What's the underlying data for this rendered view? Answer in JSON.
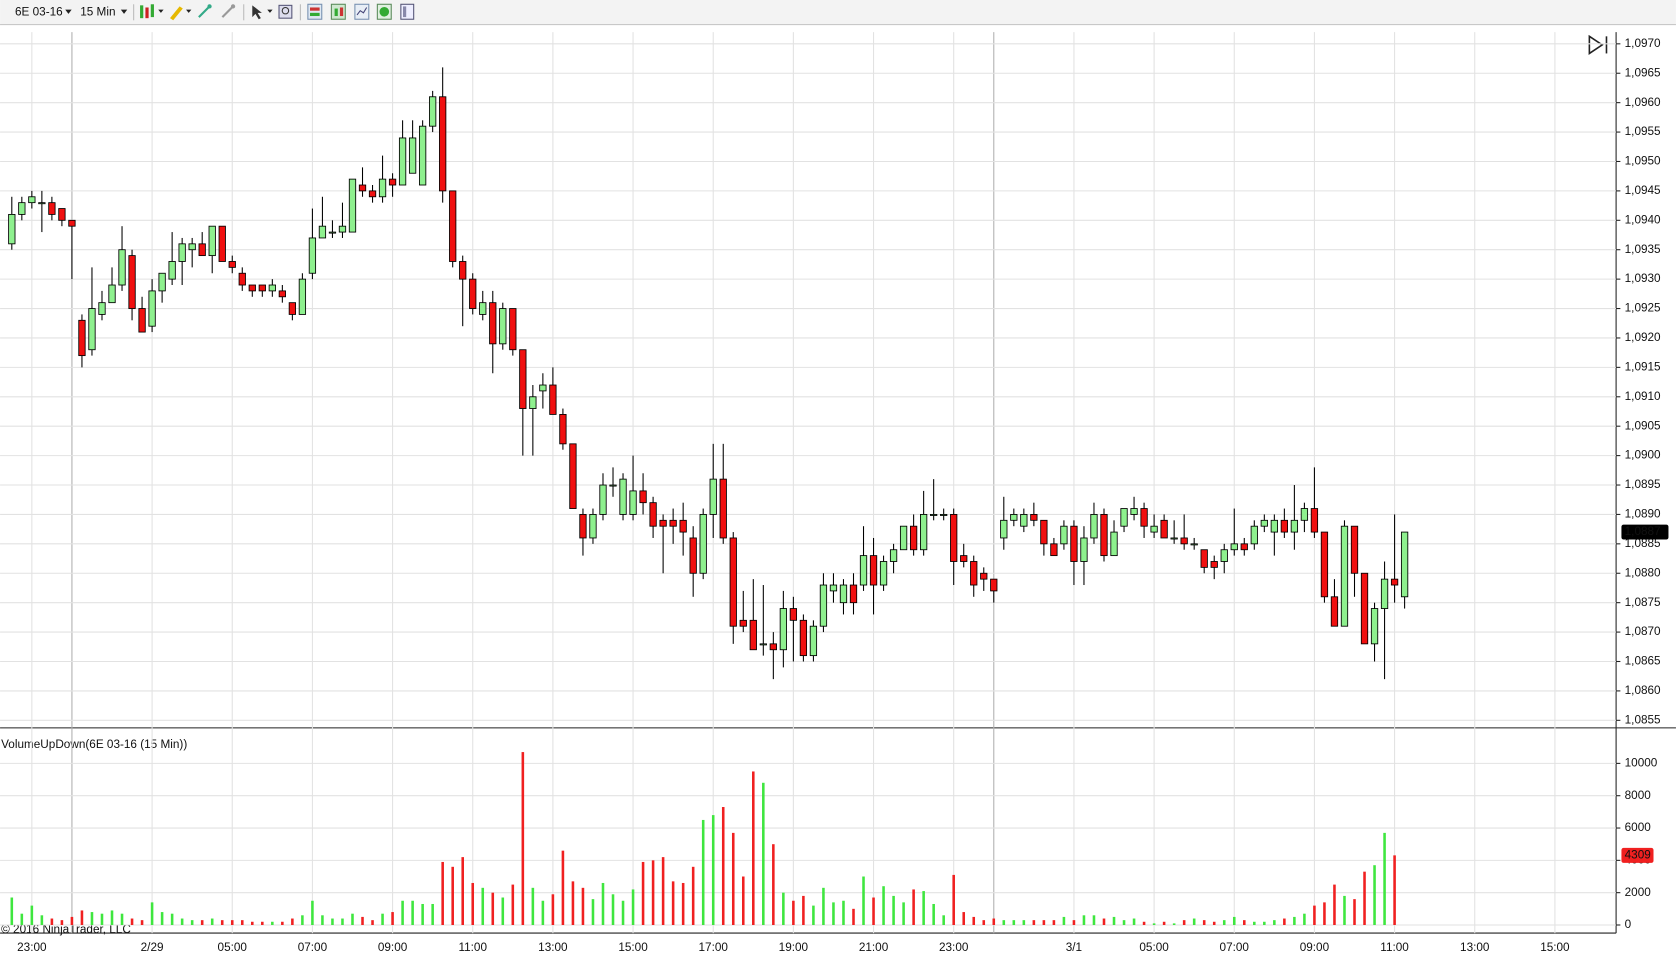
{
  "toolbar": {
    "instrument": "6E 03-16",
    "interval": "15 Min"
  },
  "copyright": "© 2016 NinjaTrader, LLC",
  "chart_data": [
    {
      "type": "candlestick",
      "categories": [
        null,
        null,
        "23:00",
        null,
        null,
        null,
        null,
        null,
        null,
        null,
        null,
        null,
        null,
        null,
        "2/29",
        null,
        null,
        null,
        null,
        null,
        null,
        null,
        "05:00",
        null,
        null,
        null,
        null,
        null,
        null,
        null,
        "07:00",
        null,
        null,
        null,
        null,
        null,
        null,
        null,
        "09:00",
        null,
        null,
        null,
        null,
        null,
        null,
        null,
        "11:00",
        null,
        null,
        null,
        null,
        null,
        null,
        null,
        "13:00",
        null,
        null,
        null,
        null,
        null,
        null,
        null,
        "15:00",
        null,
        null,
        null,
        null,
        null,
        null,
        null,
        "17:00",
        null,
        null,
        null,
        null,
        null,
        null,
        null,
        "19:00",
        null,
        null,
        null,
        null,
        null,
        null,
        null,
        "21:00",
        null,
        null,
        null,
        null,
        null,
        null,
        null,
        "23:00",
        null,
        null,
        null,
        null,
        null,
        null,
        null,
        null,
        null,
        null,
        null,
        "3/1",
        null,
        null,
        null,
        null,
        null,
        null,
        null,
        "05:00",
        null,
        null,
        null,
        null,
        null,
        null,
        null,
        "07:00",
        null,
        null,
        null,
        null,
        null,
        null,
        null,
        "09:00",
        null,
        null,
        null,
        null,
        null,
        null,
        null,
        "11:00",
        null,
        null,
        null,
        null,
        null,
        null,
        null,
        "13:00",
        null,
        null,
        null,
        null,
        null,
        null,
        null,
        "15:00",
        null,
        null,
        null,
        null,
        null
      ],
      "open": [
        1.0936,
        1.0941,
        1.0943,
        1.0943,
        1.0943,
        1.0942,
        1.094,
        1.0923,
        1.0918,
        1.0924,
        1.0926,
        1.0929,
        1.0934,
        1.0925,
        1.0922,
        1.0928,
        1.093,
        1.0933,
        1.0935,
        1.0936,
        1.0934,
        1.0939,
        1.0933,
        1.0931,
        1.0929,
        1.0929,
        1.0928,
        1.0928,
        1.0926,
        1.0924,
        1.0931,
        1.0937,
        1.0938,
        1.0938,
        1.0938,
        1.0946,
        1.0945,
        1.0944,
        1.0947,
        1.0946,
        1.0948,
        1.0946,
        1.0956,
        1.0961,
        1.0945,
        1.0933,
        1.093,
        1.0924,
        1.0926,
        1.0919,
        1.0925,
        1.0918,
        1.0908,
        1.0911,
        1.0912,
        1.0907,
        1.0902,
        1.089,
        1.0886,
        1.089,
        1.0895,
        1.089,
        1.089,
        1.0894,
        1.0892,
        1.0889,
        1.0889,
        1.0889,
        1.0886,
        1.088,
        1.089,
        1.0896,
        1.0886,
        1.0872,
        1.0872,
        1.0868,
        1.0868,
        1.0867,
        1.0874,
        1.0872,
        1.0866,
        1.0871,
        1.0877,
        1.0875,
        1.0878,
        1.0878,
        1.0883,
        1.0878,
        1.0882,
        1.0884,
        1.0888,
        1.0884,
        1.089,
        1.089,
        1.089,
        1.0883,
        1.0882,
        1.088,
        1.0879,
        1.0886,
        1.0889,
        1.0888,
        1.089,
        1.0889,
        1.0885,
        1.0885,
        1.0888,
        1.0882,
        1.0886,
        1.089,
        1.0883,
        1.0888,
        1.089,
        1.0891,
        1.0887,
        1.0889,
        1.0886,
        1.0886,
        1.0885,
        1.0884,
        1.0882,
        1.0882,
        1.0884,
        1.0885,
        1.0885,
        1.0888,
        1.0887,
        1.0889,
        1.0887,
        1.0889,
        1.0891,
        1.0887,
        1.0876,
        1.0871,
        1.0888,
        1.088,
        1.0868,
        1.0874,
        1.0879,
        1.0876,
        null,
        null,
        null,
        null,
        null,
        null,
        null,
        null,
        null,
        null,
        null,
        null,
        null,
        null,
        null,
        null,
        null,
        null,
        null,
        null
      ],
      "high": [
        1.0944,
        1.0944,
        1.0945,
        1.0945,
        1.0944,
        1.0942,
        1.094,
        1.0924,
        1.0932,
        1.0928,
        1.0932,
        1.0939,
        1.0935,
        1.0927,
        1.093,
        1.0931,
        1.0938,
        1.0937,
        1.0937,
        1.0938,
        1.0939,
        1.0939,
        1.0934,
        1.0932,
        1.0929,
        1.0929,
        1.093,
        1.0929,
        1.0926,
        1.0931,
        1.0942,
        1.0944,
        1.094,
        1.0943,
        1.0947,
        1.0949,
        1.0946,
        1.0951,
        1.0948,
        1.0957,
        1.0957,
        1.0957,
        1.0962,
        1.0966,
        1.0945,
        1.0934,
        1.0931,
        1.0928,
        1.0928,
        1.0926,
        1.0925,
        1.0918,
        1.0912,
        1.0914,
        1.0915,
        1.0908,
        1.0902,
        1.0891,
        1.0891,
        1.0897,
        1.0898,
        1.0897,
        1.09,
        1.0897,
        1.0893,
        1.089,
        1.0891,
        1.0892,
        1.0888,
        1.0891,
        1.0902,
        1.0902,
        1.0887,
        1.0877,
        1.0879,
        1.0878,
        1.087,
        1.0877,
        1.0876,
        1.0873,
        1.0872,
        1.088,
        1.088,
        1.0879,
        1.088,
        1.0888,
        1.0886,
        1.0883,
        1.0885,
        1.0888,
        1.089,
        1.0894,
        1.0896,
        1.0891,
        1.0891,
        1.0885,
        1.0883,
        1.0881,
        1.0879,
        1.0893,
        1.0891,
        1.0891,
        1.0892,
        1.0889,
        1.0886,
        1.0889,
        1.0889,
        1.0888,
        1.0892,
        1.0891,
        1.0889,
        1.0891,
        1.0893,
        1.0892,
        1.089,
        1.089,
        1.0889,
        1.089,
        1.0886,
        1.0884,
        1.0883,
        1.0885,
        1.0891,
        1.0886,
        1.0889,
        1.089,
        1.089,
        1.0891,
        1.0895,
        1.0892,
        1.0898,
        1.0887,
        1.0879,
        1.0889,
        1.0888,
        1.088,
        1.0875,
        1.0882,
        1.089,
        1.0887,
        null,
        null,
        null,
        null,
        null,
        null,
        null,
        null,
        null,
        null,
        null,
        null,
        null,
        null,
        null,
        null,
        null,
        null,
        null,
        null
      ],
      "low": [
        1.0935,
        1.094,
        1.0942,
        1.0938,
        1.094,
        1.0939,
        1.093,
        1.0915,
        1.0917,
        1.0923,
        1.0926,
        1.0928,
        1.0923,
        1.0921,
        1.0921,
        1.0926,
        1.0929,
        1.0929,
        1.0932,
        1.0934,
        1.0931,
        1.0933,
        1.0931,
        1.0928,
        1.0927,
        1.0927,
        1.0927,
        1.0926,
        1.0923,
        1.0924,
        1.093,
        1.0937,
        1.0937,
        1.0937,
        1.0938,
        1.0944,
        1.0943,
        1.0943,
        1.0944,
        1.0946,
        1.0948,
        1.0946,
        1.0955,
        1.0943,
        1.0932,
        1.0922,
        1.0924,
        1.0923,
        1.0914,
        1.0918,
        1.0917,
        1.09,
        1.09,
        1.0908,
        1.0907,
        1.0901,
        1.0891,
        1.0883,
        1.0885,
        1.0889,
        1.0893,
        1.0889,
        1.0889,
        1.089,
        1.0886,
        1.088,
        1.0885,
        1.0883,
        1.0876,
        1.0879,
        1.0886,
        1.0885,
        1.0868,
        1.087,
        1.0867,
        1.0866,
        1.0862,
        1.0864,
        1.0865,
        1.0865,
        1.0865,
        1.087,
        1.0875,
        1.0873,
        1.0873,
        1.0877,
        1.0873,
        1.0877,
        1.088,
        1.0884,
        1.0883,
        1.0883,
        1.0889,
        1.0889,
        1.0878,
        1.0881,
        1.0876,
        1.0877,
        1.0875,
        1.0884,
        1.0888,
        1.0887,
        1.0888,
        1.0883,
        1.0883,
        1.0884,
        1.0878,
        1.0878,
        1.0885,
        1.0882,
        1.0883,
        1.0887,
        1.0889,
        1.0886,
        1.0886,
        1.0886,
        1.0885,
        1.0884,
        1.0884,
        1.088,
        1.0879,
        1.088,
        1.0883,
        1.0883,
        1.0884,
        1.0887,
        1.0883,
        1.0886,
        1.0884,
        1.0887,
        1.0886,
        1.0875,
        1.0871,
        1.0871,
        1.0876,
        1.0868,
        1.0865,
        1.0862,
        1.0875,
        1.0874,
        null,
        null,
        null,
        null,
        null,
        null,
        null,
        null,
        null,
        null,
        null,
        null,
        null,
        null,
        null,
        null,
        null,
        null,
        null,
        null
      ],
      "close": [
        1.0941,
        1.0943,
        1.0944,
        1.0943,
        1.0941,
        1.094,
        1.0939,
        1.0917,
        1.0925,
        1.0926,
        1.0929,
        1.0935,
        1.0925,
        1.0921,
        1.0928,
        1.0931,
        1.0933,
        1.0936,
        1.0936,
        1.0934,
        1.0939,
        1.0933,
        1.0932,
        1.0929,
        1.0928,
        1.0928,
        1.0929,
        1.0927,
        1.0924,
        1.093,
        1.0937,
        1.0939,
        1.0938,
        1.0939,
        1.0947,
        1.0945,
        1.0944,
        1.0947,
        1.0946,
        1.0954,
        1.0954,
        1.0956,
        1.0961,
        1.0945,
        1.0933,
        1.093,
        1.0925,
        1.0926,
        1.0919,
        1.0925,
        1.0918,
        1.0908,
        1.091,
        1.0912,
        1.0907,
        1.0902,
        1.0891,
        1.0886,
        1.089,
        1.0895,
        1.0895,
        1.0896,
        1.0894,
        1.0892,
        1.0888,
        1.0888,
        1.0888,
        1.0887,
        1.088,
        1.089,
        1.0896,
        1.0886,
        1.0871,
        1.0871,
        1.0867,
        1.0868,
        1.0867,
        1.0874,
        1.0872,
        1.0866,
        1.0871,
        1.0878,
        1.0878,
        1.0878,
        1.0875,
        1.0883,
        1.0878,
        1.0882,
        1.0884,
        1.0888,
        1.0884,
        1.089,
        1.089,
        1.089,
        1.0882,
        1.0882,
        1.0878,
        1.0879,
        1.0877,
        1.0889,
        1.089,
        1.089,
        1.0889,
        1.0885,
        1.0883,
        1.0888,
        1.0882,
        1.0886,
        1.089,
        1.0883,
        1.0887,
        1.0891,
        1.0891,
        1.0888,
        1.0888,
        1.0886,
        1.0886,
        1.0885,
        1.0885,
        1.0881,
        1.0881,
        1.0884,
        1.0885,
        1.0884,
        1.0888,
        1.0889,
        1.0889,
        1.0887,
        1.0889,
        1.0891,
        1.0887,
        1.0876,
        1.0871,
        1.0888,
        1.088,
        1.0868,
        1.0874,
        1.0879,
        1.0878,
        1.0887,
        null,
        null,
        null,
        null,
        null,
        null,
        null,
        null,
        null,
        null,
        null,
        null,
        null,
        null,
        null,
        null,
        null,
        null,
        null,
        null
      ],
      "up_color": "#8ef08e",
      "down_color": "#f01010",
      "ylim": [
        1.08539,
        1.0972
      ],
      "yticks": [
        {
          "value": 1.0855,
          "label": "1,0855"
        },
        {
          "value": 1.086,
          "label": "1,0860"
        },
        {
          "value": 1.0865,
          "label": "1,0865"
        },
        {
          "value": 1.087,
          "label": "1,0870"
        },
        {
          "value": 1.0875,
          "label": "1,0875"
        },
        {
          "value": 1.088,
          "label": "1,0880"
        },
        {
          "value": 1.0885,
          "label": "1,0885"
        },
        {
          "value": 1.089,
          "label": "1,0890"
        },
        {
          "value": 1.0895,
          "label": "1,0895"
        },
        {
          "value": 1.09,
          "label": "1,0900"
        },
        {
          "value": 1.0905,
          "label": "1,0905"
        },
        {
          "value": 1.091,
          "label": "1,0910"
        },
        {
          "value": 1.0915,
          "label": "1,0915"
        },
        {
          "value": 1.092,
          "label": "1,0920"
        },
        {
          "value": 1.0925,
          "label": "1,0925"
        },
        {
          "value": 1.093,
          "label": "1,0930"
        },
        {
          "value": 1.0935,
          "label": "1,0935"
        },
        {
          "value": 1.094,
          "label": "1,0940"
        },
        {
          "value": 1.0945,
          "label": "1,0945"
        },
        {
          "value": 1.095,
          "label": "1,0950"
        },
        {
          "value": 1.0955,
          "label": "1,0955"
        },
        {
          "value": 1.096,
          "label": "1,0960"
        },
        {
          "value": 1.0965,
          "label": "1,0965"
        },
        {
          "value": 1.097,
          "label": "1,0970"
        }
      ],
      "last_price": {
        "value": 1.0887,
        "label": "1,0887"
      },
      "grid": true
    },
    {
      "type": "bar",
      "title": "VolumeUpDown(6E 03-16 (15 Min))",
      "values": [
        1700,
        700,
        1200,
        600,
        400,
        300,
        500,
        900,
        800,
        700,
        900,
        700,
        400,
        300,
        1400,
        800,
        700,
        400,
        300,
        300,
        400,
        300,
        300,
        300,
        200,
        200,
        200,
        200,
        400,
        600,
        1500,
        600,
        400,
        400,
        700,
        500,
        300,
        700,
        800,
        1500,
        1500,
        1300,
        1300,
        3900,
        3600,
        4200,
        2600,
        2300,
        2000,
        1700,
        2500,
        10700,
        2300,
        1500,
        1900,
        4600,
        2700,
        2300,
        1600,
        2600,
        1900,
        1500,
        2200,
        3900,
        4000,
        4200,
        2700,
        2600,
        3600,
        6500,
        6800,
        7300,
        5700,
        3000,
        9500,
        8800,
        5000,
        2000,
        1500,
        1800,
        1200,
        2300,
        1400,
        1500,
        1000,
        3000,
        1700,
        2400,
        1800,
        1400,
        2200,
        2100,
        1300,
        600,
        3100,
        800,
        500,
        300,
        400,
        300,
        300,
        300,
        300,
        300,
        300,
        500,
        300,
        600,
        600,
        400,
        500,
        300,
        400,
        200,
        100,
        200,
        100,
        300,
        400,
        300,
        200,
        300,
        500,
        300,
        200,
        200,
        300,
        400,
        500,
        700,
        1200,
        1400,
        2500,
        1800,
        1600,
        3300,
        3700,
        5700,
        4309,
        null,
        null,
        null,
        null,
        null,
        null,
        null,
        null,
        null,
        null,
        null,
        null,
        null,
        null,
        null,
        null,
        null,
        null,
        null,
        null,
        null
      ],
      "up_color": "#3fe63f",
      "down_color": "#f02020",
      "ylim": [
        -500,
        12000
      ],
      "yticks": [
        0,
        2000,
        4000,
        6000,
        8000,
        10000
      ],
      "grid": true
    }
  ]
}
